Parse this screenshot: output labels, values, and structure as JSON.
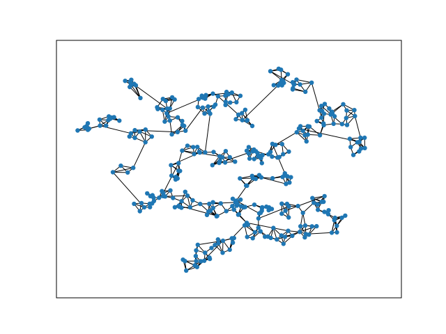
{
  "figure": {
    "description_colors": {
      "node_color": "#1f77b4",
      "edge_color": "#000000",
      "frame_color": "#000000",
      "background": "#ffffff"
    }
  },
  "graph": {
    "type": "network",
    "axes_ticks": false,
    "labels": false
  }
}
